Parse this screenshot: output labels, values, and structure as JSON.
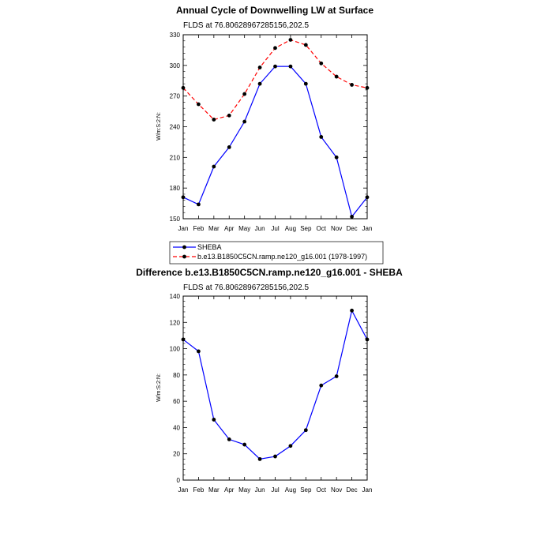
{
  "chart_data": [
    {
      "type": "line",
      "title": "Annual Cycle of Downwelling LW at Surface",
      "subtitle": "FLDS at 76.80628967285156,202.5",
      "ylabel": "W/m:S:2:N:",
      "categories": [
        "Jan",
        "Feb",
        "Mar",
        "Apr",
        "May",
        "Jun",
        "Jul",
        "Aug",
        "Sep",
        "Oct",
        "Nov",
        "Dec",
        "Jan"
      ],
      "ylim": [
        150,
        330
      ],
      "yticks": [
        150,
        180,
        210,
        240,
        270,
        300,
        330
      ],
      "legend_placement": "below",
      "series": [
        {
          "name": "SHEBA",
          "color": "#0000ff",
          "dash": "solid",
          "values": [
            171,
            164,
            201,
            220,
            245,
            282,
            299,
            299,
            282,
            230,
            210,
            152,
            171
          ]
        },
        {
          "name": "b.e13.B1850C5CN.ramp.ne120_g16.001 (1978-1997)",
          "color": "#ff0000",
          "dash": "dashed",
          "values": [
            278,
            262,
            247,
            251,
            272,
            298,
            317,
            325,
            320,
            302,
            289,
            281,
            278
          ]
        }
      ]
    },
    {
      "type": "line",
      "title": "Difference b.e13.B1850C5CN.ramp.ne120_g16.001 - SHEBA",
      "subtitle": "FLDS at 76.80628967285156,202.5",
      "ylabel": "W/m:S:2:N:",
      "categories": [
        "Jan",
        "Feb",
        "Mar",
        "Apr",
        "May",
        "Jun",
        "Jul",
        "Aug",
        "Sep",
        "Oct",
        "Nov",
        "Dec",
        "Jan"
      ],
      "ylim": [
        0,
        140
      ],
      "yticks": [
        0,
        20,
        40,
        60,
        80,
        100,
        120,
        140
      ],
      "series": [
        {
          "color": "#0000ff",
          "dash": "solid",
          "values": [
            107,
            98,
            46,
            31,
            27,
            16,
            18,
            26,
            38,
            72,
            79,
            129,
            107
          ]
        }
      ]
    }
  ]
}
